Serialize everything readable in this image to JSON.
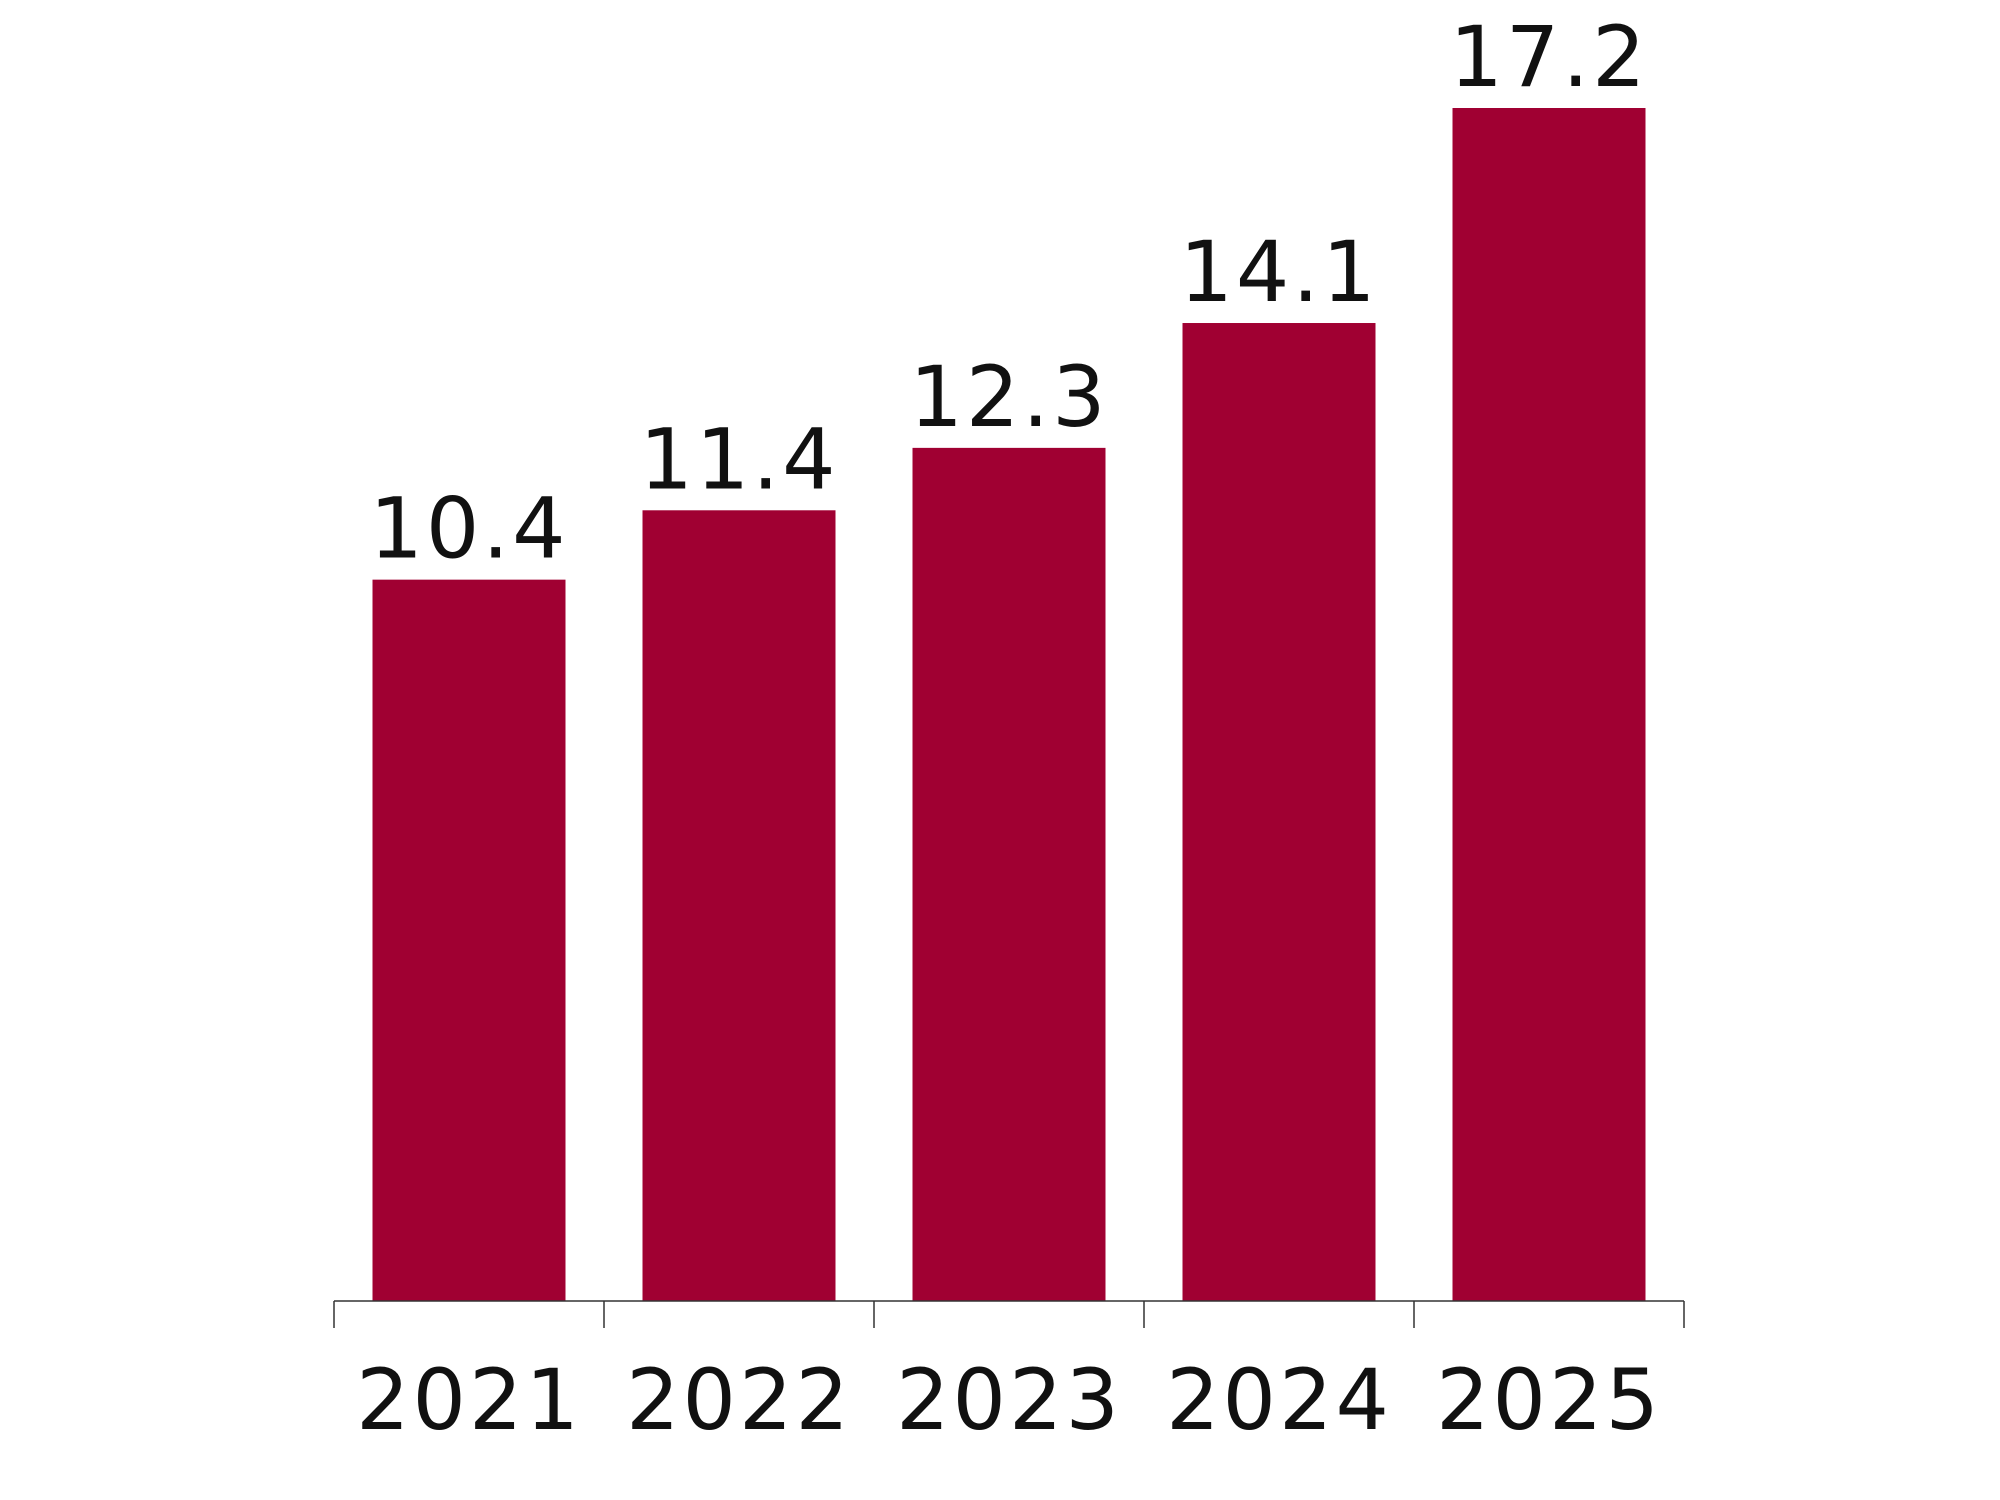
{
  "chart_data": {
    "type": "bar",
    "title": "",
    "xlabel": "",
    "ylabel": "",
    "categories": [
      "2021",
      "2022",
      "2023",
      "2024",
      "2025"
    ],
    "values": [
      10.4,
      11.4,
      12.3,
      14.1,
      17.2
    ],
    "value_labels": [
      "10.4",
      "11.4",
      "12.3",
      "14.1",
      "17.2"
    ],
    "ylim": [
      0,
      17.2
    ],
    "grid": false,
    "legend": "none",
    "bar_color": "#A00032"
  }
}
